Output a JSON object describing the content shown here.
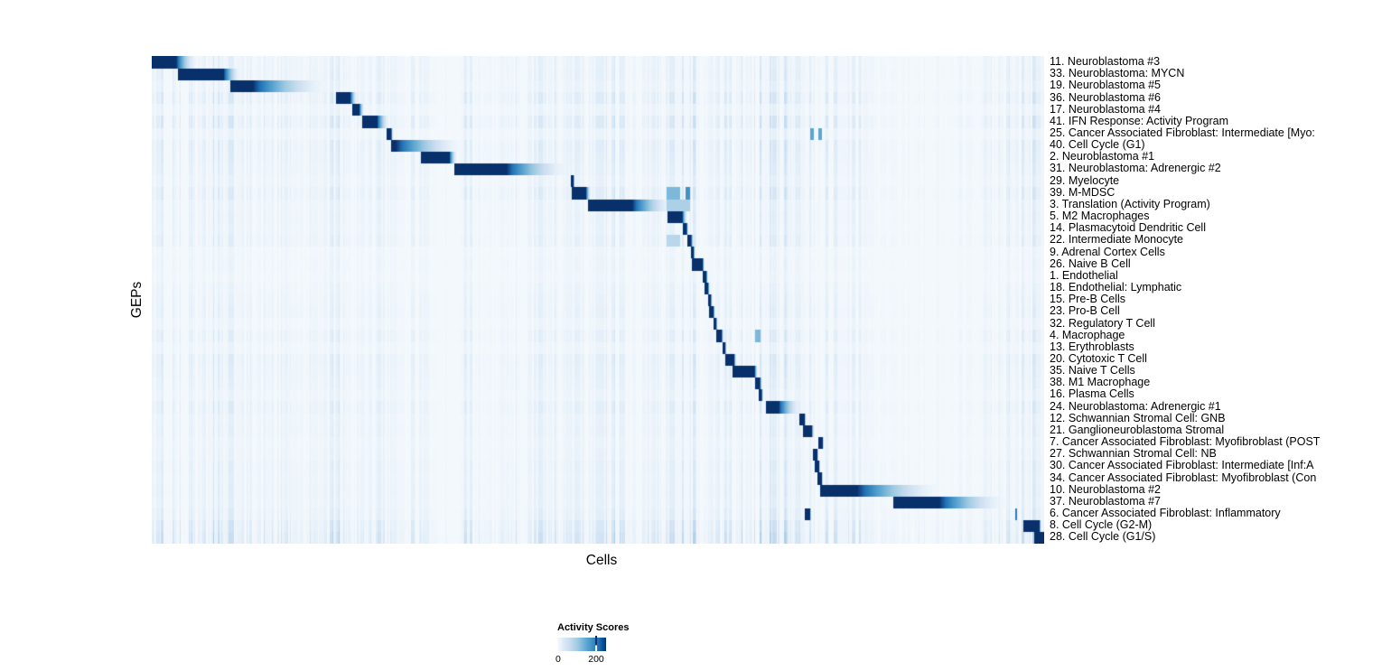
{
  "chart_data": {
    "type": "heatmap",
    "title": "",
    "xlabel": "Cells",
    "ylabel": "GEPs",
    "colorbar": {
      "title": "Activity Scores",
      "ticks": [
        0,
        200
      ],
      "tick_labels": [
        "0",
        "200"
      ],
      "tick_fraction_of_bar": 0.8
    },
    "palette": [
      "#F3F8FC",
      "#E1EDF8",
      "#C6DBEF",
      "#9ECAE1",
      "#6BAED6",
      "#4292C6",
      "#2171B5",
      "#08306B"
    ],
    "streak_regions": [
      [
        0.0,
        0.1,
        0.85
      ],
      [
        0.1,
        0.12,
        0.3
      ],
      [
        0.12,
        0.27,
        0.75
      ],
      [
        0.27,
        0.3,
        0.35
      ],
      [
        0.3,
        0.47,
        0.5
      ],
      [
        0.47,
        0.61,
        0.8
      ],
      [
        0.61,
        0.63,
        0.4
      ],
      [
        0.63,
        0.8,
        0.8
      ],
      [
        0.8,
        0.93,
        0.22
      ],
      [
        0.93,
        1.0,
        0.9
      ]
    ],
    "gep_rows": [
      {
        "label": "11. Neuroblastoma #3",
        "core": [
          0.0,
          0.027
        ],
        "tail": 0.05,
        "streaks": 0.35
      },
      {
        "label": "33. Neuroblastoma: MYCN",
        "core": [
          0.029,
          0.08
        ],
        "tail": 0.1,
        "streaks": 0.4
      },
      {
        "label": "19. Neuroblastoma #5",
        "core": [
          0.088,
          0.113
        ],
        "tail": 0.2,
        "streaks": 0.3
      },
      {
        "label": "36. Neuroblastoma #6",
        "core": [
          0.206,
          0.222
        ],
        "tail": 0.23,
        "streaks": 0.55
      },
      {
        "label": "17. Neuroblastoma #4",
        "core": [
          0.224,
          0.232
        ],
        "tail": 0.238,
        "streaks": 0.25
      },
      {
        "label": "41. IFN Response: Activity Program",
        "core": [
          0.235,
          0.252
        ],
        "tail": 0.266,
        "streaks": 0.6
      },
      {
        "label": "25. Cancer Associated Fibroblast: Intermediate [Myo:",
        "core": [
          0.263,
          0.268
        ],
        "tail": 0.27,
        "streaks": 0.25,
        "extras": [
          [
            0.737,
            0.741,
            0.6
          ],
          [
            0.746,
            0.75,
            0.6
          ]
        ]
      },
      {
        "label": "40. Cell Cycle (G1)",
        "core": [
          0.268,
          0.273
        ],
        "tail": 0.35,
        "streaks": 0.5
      },
      {
        "label": "2. Neuroblastoma #1",
        "core": [
          0.301,
          0.333
        ],
        "tail": 0.342,
        "streaks": 0.45
      },
      {
        "label": "31. Neuroblastoma: Adrenergic #2",
        "core": [
          0.339,
          0.397
        ],
        "tail": 0.47,
        "streaks": 0.4
      },
      {
        "label": "29. Myelocyte",
        "core": [
          0.469,
          0.472
        ],
        "tail": 0.474,
        "streaks": 0.3
      },
      {
        "label": "39. M-MDSC",
        "core": [
          0.47,
          0.486
        ],
        "tail": 0.492,
        "streaks": 0.5,
        "extras": [
          [
            0.576,
            0.592,
            0.5
          ],
          [
            0.598,
            0.603,
            0.7
          ]
        ]
      },
      {
        "label": "3. Translation (Activity Program)",
        "core": [
          0.488,
          0.538
        ],
        "tail": 0.586,
        "streaks": 0.3,
        "extras": [
          [
            0.576,
            0.603,
            0.35
          ]
        ]
      },
      {
        "label": "5. M2 Macrophages",
        "core": [
          0.577,
          0.594
        ],
        "tail": 0.6,
        "streaks": 0.35
      },
      {
        "label": "14. Plasmacytoid Dendritic Cell",
        "core": [
          0.595,
          0.599
        ],
        "tail": 0.601,
        "streaks": 0.3
      },
      {
        "label": "22. Intermediate Monocyte",
        "core": [
          0.6,
          0.604
        ],
        "tail": 0.607,
        "streaks": 0.4,
        "extras": [
          [
            0.576,
            0.592,
            0.3
          ]
        ]
      },
      {
        "label": "9. Adrenal Cortex Cells",
        "core": [
          0.604,
          0.607
        ],
        "tail": 0.608,
        "streaks": 0.15
      },
      {
        "label": "26. Naive B Cell",
        "core": [
          0.605,
          0.617
        ],
        "tail": 0.619,
        "streaks": 0.2
      },
      {
        "label": "1. Endothelial",
        "core": [
          0.617,
          0.621
        ],
        "tail": 0.623,
        "streaks": 0.15
      },
      {
        "label": "18. Endothelial: Lymphatic",
        "core": [
          0.619,
          0.623
        ],
        "tail": 0.625,
        "streaks": 0.25
      },
      {
        "label": "15. Pre-B Cells",
        "core": [
          0.623,
          0.626
        ],
        "tail": 0.628,
        "streaks": 0.3
      },
      {
        "label": "23. Pro-B Cell",
        "core": [
          0.624,
          0.629
        ],
        "tail": 0.631,
        "streaks": 0.35
      },
      {
        "label": "32. Regulatory T Cell",
        "core": [
          0.629,
          0.632
        ],
        "tail": 0.634,
        "streaks": 0.2
      },
      {
        "label": "4. Macrophage",
        "core": [
          0.632,
          0.638
        ],
        "tail": 0.641,
        "streaks": 0.4,
        "extras": [
          [
            0.676,
            0.682,
            0.5
          ]
        ]
      },
      {
        "label": "13. Erythroblasts",
        "core": [
          0.639,
          0.642
        ],
        "tail": 0.644,
        "streaks": 0.2
      },
      {
        "label": "20. Cytotoxic T Cell",
        "core": [
          0.642,
          0.652
        ],
        "tail": 0.655,
        "streaks": 0.45
      },
      {
        "label": "35. Naive T Cells",
        "core": [
          0.65,
          0.675
        ],
        "tail": 0.679,
        "streaks": 0.4
      },
      {
        "label": "38. M1 Macrophage",
        "core": [
          0.676,
          0.681
        ],
        "tail": 0.684,
        "streaks": 0.35
      },
      {
        "label": "16. Plasma Cells",
        "core": [
          0.68,
          0.683
        ],
        "tail": 0.685,
        "streaks": 0.25
      },
      {
        "label": "24. Neuroblastoma: Adrenergic #1",
        "core": [
          0.688,
          0.702
        ],
        "tail": 0.728,
        "streaks": 0.45
      },
      {
        "label": "12. Schwannian Stromal Cell: GNB",
        "core": [
          0.725,
          0.731
        ],
        "tail": 0.733,
        "streaks": 0.3
      },
      {
        "label": "21. Ganglioneuroblastoma Stromal",
        "core": [
          0.729,
          0.739
        ],
        "tail": 0.742,
        "streaks": 0.35
      },
      {
        "label": "7. Cancer Associated Fibroblast: Myofibroblast (POST",
        "core": [
          0.746,
          0.751
        ],
        "tail": 0.753,
        "streaks": 0.25
      },
      {
        "label": "27. Schwannian Stromal Cell: NB",
        "core": [
          0.74,
          0.745
        ],
        "tail": 0.747,
        "streaks": 0.3
      },
      {
        "label": "30. Cancer Associated Fibroblast: Intermediate [Inf:A",
        "core": [
          0.742,
          0.747
        ],
        "tail": 0.749,
        "streaks": 0.4
      },
      {
        "label": "34. Cancer Associated Fibroblast: Myofibroblast (Con",
        "core": [
          0.745,
          0.75
        ],
        "tail": 0.752,
        "streaks": 0.35
      },
      {
        "label": "10. Neuroblastoma #2",
        "core": [
          0.748,
          0.79
        ],
        "tail": 0.887,
        "streaks": 0.4
      },
      {
        "label": "37. Neuroblastoma #7",
        "core": [
          0.83,
          0.882
        ],
        "tail": 0.96,
        "streaks": 0.35
      },
      {
        "label": "6. Cancer Associated Fibroblast: Inflammatory",
        "core": [
          0.731,
          0.737
        ],
        "tail": 0.739,
        "streaks": 0.45,
        "extras": [
          [
            0.967,
            0.969,
            0.8
          ]
        ]
      },
      {
        "label": "8. Cell Cycle (G2-M)",
        "core": [
          0.976,
          0.994
        ],
        "tail": 0.997,
        "streaks": 0.7
      },
      {
        "label": "28. Cell Cycle (G1/S)",
        "core": [
          0.988,
          1.0
        ],
        "tail": 1.0,
        "streaks": 0.85
      }
    ]
  }
}
